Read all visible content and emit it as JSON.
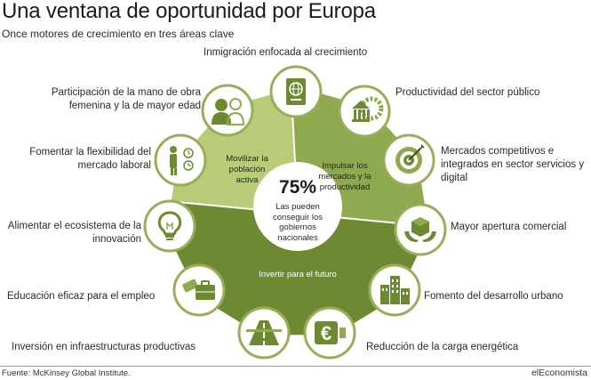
{
  "header": {
    "title": "Una ventana de oportunidad por Europa",
    "subtitle": "Once motores de crecimiento en tres áreas clave"
  },
  "segments": {
    "movilizar": "Movilizar la población activa",
    "impulsar": "Impulsar los mercados y la productividad",
    "invertir": "Invertir para el futuro"
  },
  "center": {
    "value": "75%",
    "text": "Las pueden conseguir los gobiernos nacionales"
  },
  "engines": [
    {
      "label": "Inmigración enfocada al crecimiento",
      "icon": "passport-icon"
    },
    {
      "label": "Productividad del sector público",
      "icon": "government-building-gear-icon"
    },
    {
      "label": "Mercados competitivos e integrados en sector servicios y digital",
      "icon": "target-arrow-icon"
    },
    {
      "label": "Mayor apertura comercial",
      "icon": "boxes-hands-icon"
    },
    {
      "label": "Fomento del desarrollo urbano",
      "icon": "city-buildings-icon"
    },
    {
      "label": "Reducción de la carga energética",
      "icon": "euro-plug-icon"
    },
    {
      "label": "Inversión en infraestructuras productivas",
      "icon": "road-icon"
    },
    {
      "label": "Educación eficaz para el empleo",
      "icon": "diploma-briefcase-icon"
    },
    {
      "label": "Alimentar el ecosistema de la innovación",
      "icon": "lightbulb-icon"
    },
    {
      "label": "Fomentar la flexibilidad del mercado laboral",
      "icon": "worker-clock-icon"
    },
    {
      "label": "Participación de la mano de obra femenina y la de mayor edad",
      "icon": "woman-elder-icon"
    }
  ],
  "footer": {
    "source": "Fuente: McKinsey Global Institute.",
    "brand": "elEconomista"
  },
  "colors": {
    "light_green": "#b8cc78",
    "mid_green": "#8fa94e",
    "dark_green": "#6d8a32",
    "icon_circle": "#ffffff",
    "icon_ring": "#98ae5a"
  }
}
